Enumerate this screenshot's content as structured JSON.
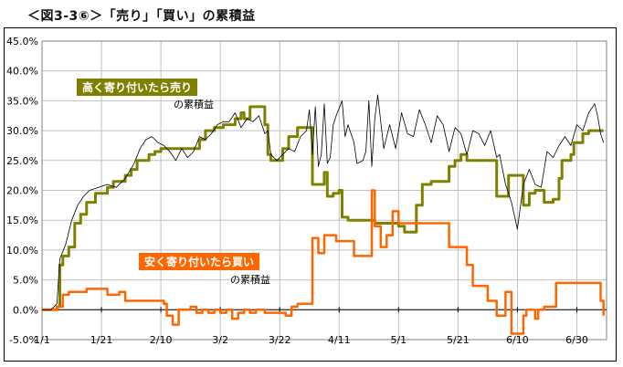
{
  "title": "＜図3-3⑥＞「売り」「買い」の累積益",
  "colors": {
    "sell_line": "#808000",
    "buy_line": "#ff6600",
    "ref_line": "#000000",
    "grid": "#c0c0c0",
    "sell_label_bg": "#808000",
    "buy_label_bg": "#ff6600"
  },
  "labels": {
    "sell_box": "高く寄り付いたら売り",
    "sell_sub": "の累積益",
    "buy_box": "安く寄り付いたら買い",
    "buy_sub": "の累積益"
  },
  "chart_data": {
    "type": "line",
    "title": "＜図3-3⑥＞「売り」「買い」の累積益",
    "xlabel": "",
    "ylabel": "",
    "x_range_days": [
      0,
      190
    ],
    "x_ticks": [
      "1/1",
      "1/21",
      "2/10",
      "3/2",
      "3/22",
      "4/11",
      "5/1",
      "5/21",
      "6/10",
      "6/30"
    ],
    "x_tick_days": [
      0,
      20,
      40,
      60,
      80,
      100,
      120,
      140,
      160,
      180
    ],
    "y_ticks": [
      "-5.0%",
      "0.0%",
      "5.0%",
      "10.0%",
      "15.0%",
      "20.0%",
      "25.0%",
      "30.0%",
      "35.0%",
      "40.0%",
      "45.0%"
    ],
    "ylim": [
      -5,
      45
    ],
    "grid": true,
    "series": [
      {
        "name": "高く寄り付いたら売り",
        "style": "step",
        "points": [
          [
            0,
            0
          ],
          [
            3,
            0
          ],
          [
            5,
            0.5
          ],
          [
            6,
            7.5
          ],
          [
            7,
            9
          ],
          [
            9,
            10.5
          ],
          [
            11,
            14.5
          ],
          [
            13,
            16
          ],
          [
            15,
            18
          ],
          [
            18,
            19.5
          ],
          [
            20,
            19.5
          ],
          [
            22,
            20.5
          ],
          [
            24,
            21.5
          ],
          [
            26,
            21.5
          ],
          [
            28,
            22.5
          ],
          [
            30,
            23.5
          ],
          [
            32,
            25
          ],
          [
            34,
            25
          ],
          [
            36,
            26
          ],
          [
            38,
            26.5
          ],
          [
            40,
            27
          ],
          [
            44,
            27
          ],
          [
            48,
            27
          ],
          [
            51,
            27
          ],
          [
            53,
            28.5
          ],
          [
            55,
            30
          ],
          [
            58,
            30.5
          ],
          [
            61,
            31
          ],
          [
            63,
            31
          ],
          [
            65,
            32
          ],
          [
            67,
            33
          ],
          [
            68,
            32
          ],
          [
            70,
            34
          ],
          [
            73,
            34
          ],
          [
            75,
            31
          ],
          [
            76,
            26
          ],
          [
            77,
            25
          ],
          [
            79,
            25
          ],
          [
            81,
            27
          ],
          [
            83,
            29
          ],
          [
            86,
            30.5
          ],
          [
            89,
            30.5
          ],
          [
            90,
            30.5
          ],
          [
            91,
            21
          ],
          [
            93,
            21
          ],
          [
            95,
            23
          ],
          [
            96,
            19
          ],
          [
            98,
            19.5
          ],
          [
            100,
            20
          ],
          [
            101,
            15.5
          ],
          [
            103,
            15
          ],
          [
            110,
            15
          ],
          [
            112,
            14.5
          ],
          [
            118,
            14.5
          ],
          [
            120,
            14
          ],
          [
            122,
            13
          ],
          [
            124,
            13
          ],
          [
            126,
            17.5
          ],
          [
            128,
            21
          ],
          [
            131,
            21.5
          ],
          [
            135,
            21.5
          ],
          [
            137,
            24
          ],
          [
            139,
            25
          ],
          [
            141,
            26
          ],
          [
            142,
            26
          ],
          [
            143,
            25
          ],
          [
            150,
            25
          ],
          [
            152,
            25
          ],
          [
            153,
            19
          ],
          [
            155,
            19
          ],
          [
            157,
            22.5
          ],
          [
            160,
            22.5
          ],
          [
            162,
            17.5
          ],
          [
            164,
            19.5
          ],
          [
            166,
            20
          ],
          [
            168,
            20
          ],
          [
            169,
            18
          ],
          [
            172,
            18.5
          ],
          [
            174,
            22
          ],
          [
            175,
            25
          ],
          [
            178,
            26
          ],
          [
            179,
            28
          ],
          [
            180,
            28
          ],
          [
            182,
            29.5
          ],
          [
            184,
            30
          ],
          [
            188,
            30
          ],
          [
            189,
            30
          ]
        ]
      },
      {
        "name": "安く寄り付いたら買い",
        "style": "step",
        "points": [
          [
            0,
            0
          ],
          [
            2,
            0
          ],
          [
            5,
            0.5
          ],
          [
            7,
            2.5
          ],
          [
            9,
            3
          ],
          [
            12,
            3
          ],
          [
            15,
            3.5
          ],
          [
            20,
            3.5
          ],
          [
            22,
            2.5
          ],
          [
            26,
            3
          ],
          [
            28,
            1.5
          ],
          [
            30,
            1.5
          ],
          [
            34,
            1.5
          ],
          [
            38,
            1.5
          ],
          [
            41,
            1
          ],
          [
            42,
            -1
          ],
          [
            44,
            -2.5
          ],
          [
            46,
            0
          ],
          [
            48,
            0
          ],
          [
            50,
            0.5
          ],
          [
            52,
            -0.5
          ],
          [
            54,
            0
          ],
          [
            56,
            -0.5
          ],
          [
            58,
            0
          ],
          [
            60,
            -0.5
          ],
          [
            62,
            0
          ],
          [
            64,
            -1.5
          ],
          [
            66,
            -0.5
          ],
          [
            68,
            0
          ],
          [
            70,
            -0.5
          ],
          [
            72,
            0
          ],
          [
            75,
            -0.5
          ],
          [
            80,
            -0.5
          ],
          [
            82,
            -1
          ],
          [
            84,
            0.5
          ],
          [
            86,
            1
          ],
          [
            89,
            1
          ],
          [
            90,
            1
          ],
          [
            91,
            12
          ],
          [
            93,
            9.5
          ],
          [
            95,
            12.5
          ],
          [
            97,
            12.5
          ],
          [
            99,
            11.5
          ],
          [
            103,
            11.5
          ],
          [
            105,
            9
          ],
          [
            109,
            9
          ],
          [
            111,
            20
          ],
          [
            112,
            14
          ],
          [
            114,
            10.5
          ],
          [
            116,
            12.5
          ],
          [
            118,
            16.5
          ],
          [
            120,
            14.5
          ],
          [
            126,
            14.5
          ],
          [
            136,
            14.5
          ],
          [
            137,
            10.5
          ],
          [
            140,
            10.5
          ],
          [
            143,
            7.5
          ],
          [
            145,
            4
          ],
          [
            148,
            4
          ],
          [
            150,
            1.5
          ],
          [
            153,
            -1
          ],
          [
            155,
            -1
          ],
          [
            156,
            3
          ],
          [
            158,
            -4
          ],
          [
            161,
            -4
          ],
          [
            162,
            -1
          ],
          [
            163,
            0
          ],
          [
            165,
            0
          ],
          [
            166,
            -1.5
          ],
          [
            167,
            0
          ],
          [
            169,
            0.5
          ],
          [
            171,
            0.5
          ],
          [
            173,
            4.5
          ],
          [
            175,
            4.5
          ],
          [
            180,
            4.5
          ],
          [
            185,
            4.5
          ],
          [
            187,
            4.5
          ],
          [
            188,
            1.5
          ],
          [
            189,
            -1
          ]
        ]
      },
      {
        "name": "",
        "style": "line",
        "points": [
          [
            0,
            0
          ],
          [
            3,
            0
          ],
          [
            5,
            1
          ],
          [
            6,
            8.5
          ],
          [
            8,
            11
          ],
          [
            10,
            15
          ],
          [
            12,
            17.5
          ],
          [
            14,
            19
          ],
          [
            16,
            20
          ],
          [
            19,
            20.5
          ],
          [
            22,
            21
          ],
          [
            25,
            20.5
          ],
          [
            28,
            22
          ],
          [
            31,
            24.5
          ],
          [
            33,
            27
          ],
          [
            35,
            28.5
          ],
          [
            37,
            29
          ],
          [
            39,
            28
          ],
          [
            41,
            27.5
          ],
          [
            43,
            26.5
          ],
          [
            45,
            25
          ],
          [
            47,
            27
          ],
          [
            49,
            25.5
          ],
          [
            51,
            26.5
          ],
          [
            53,
            29
          ],
          [
            55,
            28.5
          ],
          [
            57,
            29.5
          ],
          [
            59,
            31
          ],
          [
            61,
            31.5
          ],
          [
            63,
            31.5
          ],
          [
            65,
            33
          ],
          [
            67,
            30.5
          ],
          [
            69,
            32
          ],
          [
            71,
            31.5
          ],
          [
            73,
            32.5
          ],
          [
            75,
            29.5
          ],
          [
            76,
            30
          ],
          [
            77,
            26
          ],
          [
            79,
            25
          ],
          [
            81,
            26
          ],
          [
            83,
            27
          ],
          [
            85,
            26.5
          ],
          [
            87,
            29
          ],
          [
            89,
            30
          ],
          [
            90,
            33.5
          ],
          [
            91,
            26
          ],
          [
            92,
            34
          ],
          [
            93,
            24
          ],
          [
            94,
            26
          ],
          [
            95,
            34.5
          ],
          [
            96,
            24.5
          ],
          [
            97,
            25.5
          ],
          [
            98,
            31
          ],
          [
            99,
            32.5
          ],
          [
            101,
            35
          ],
          [
            102,
            29
          ],
          [
            103,
            31
          ],
          [
            105,
            28
          ],
          [
            106,
            24.5
          ],
          [
            108,
            25
          ],
          [
            109,
            26.5
          ],
          [
            110,
            35
          ],
          [
            111,
            24
          ],
          [
            112,
            32
          ],
          [
            113,
            36
          ],
          [
            115,
            27
          ],
          [
            117,
            31
          ],
          [
            119,
            27
          ],
          [
            121,
            33
          ],
          [
            123,
            29.5
          ],
          [
            125,
            29
          ],
          [
            127,
            33.5
          ],
          [
            129,
            31
          ],
          [
            131,
            28
          ],
          [
            133,
            32.5
          ],
          [
            135,
            31
          ],
          [
            137,
            26.5
          ],
          [
            139,
            30.5
          ],
          [
            141,
            29.5
          ],
          [
            143,
            26
          ],
          [
            145,
            30
          ],
          [
            147,
            29.5
          ],
          [
            149,
            27.5
          ],
          [
            151,
            30
          ],
          [
            153,
            25.5
          ],
          [
            154,
            26
          ],
          [
            156,
            21
          ],
          [
            158,
            18
          ],
          [
            160,
            13.5
          ],
          [
            162,
            21
          ],
          [
            164,
            23.5
          ],
          [
            166,
            21
          ],
          [
            168,
            20.5
          ],
          [
            170,
            26.5
          ],
          [
            172,
            25.5
          ],
          [
            174,
            27.5
          ],
          [
            176,
            29
          ],
          [
            178,
            27.5
          ],
          [
            180,
            31
          ],
          [
            182,
            30
          ],
          [
            184,
            33
          ],
          [
            186,
            34.5
          ],
          [
            187,
            32.5
          ],
          [
            188,
            29.5
          ],
          [
            189,
            28
          ]
        ]
      }
    ]
  }
}
